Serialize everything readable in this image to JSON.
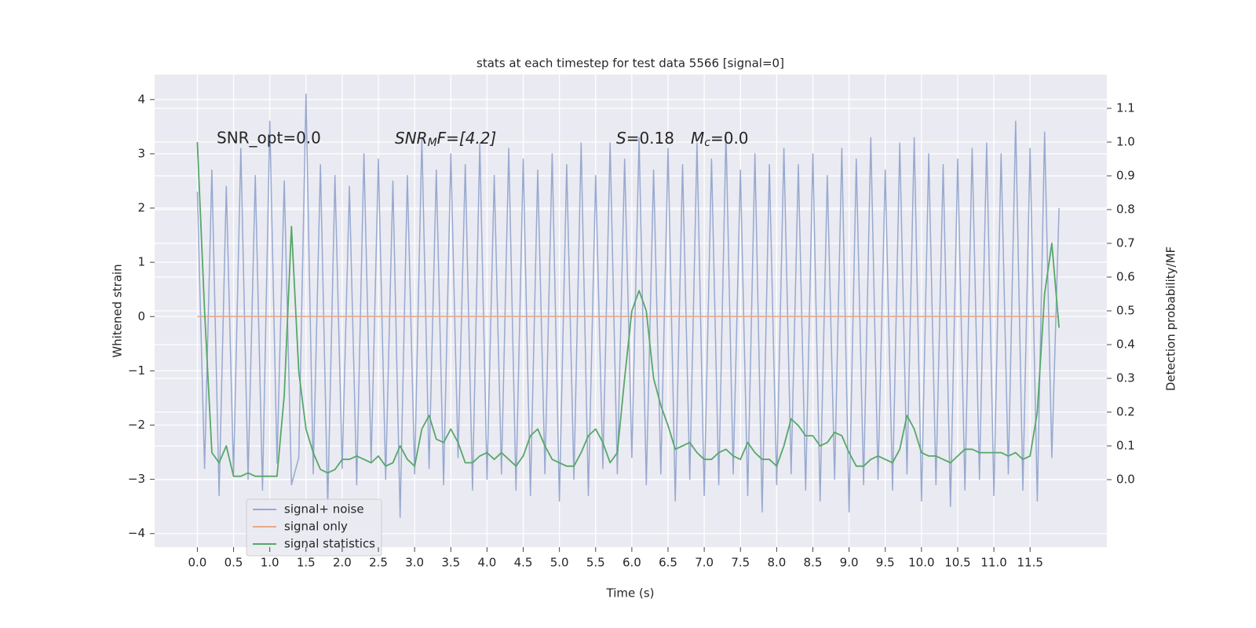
{
  "chart_data": {
    "type": "line",
    "title": "stats at each timestep for test data 5566 [signal=0]",
    "xlabel": "Time (s)",
    "ylabel": "Whitened strain",
    "y2label": "Detection probability/MF",
    "annotations": {
      "snr_opt": "SNR_opt=0.0",
      "snr_mf": {
        "base": "SNR",
        "subscript": "M",
        "rest": "F=[4.2]"
      },
      "s": {
        "symbol": "S",
        "rest": "=0.18"
      },
      "mc": {
        "symbol": "M",
        "subscript": "c",
        "rest": "=0.0"
      }
    },
    "xlim": [
      -0.59,
      12.56
    ],
    "ylim": [
      -4.25,
      4.46
    ],
    "y2lim": [
      -0.2,
      1.2
    ],
    "xticks": [
      {
        "value": 0,
        "label": "0.0"
      },
      0.5,
      {
        "value": 1,
        "label": "1.0"
      },
      1.5,
      {
        "value": 2,
        "label": "2.0"
      },
      2.5,
      {
        "value": 3,
        "label": "3.0"
      },
      3.5,
      {
        "value": 4,
        "label": "4.0"
      },
      4.5,
      {
        "value": 5,
        "label": "5.0"
      },
      5.5,
      {
        "value": 6,
        "label": "6.0"
      },
      6.5,
      {
        "value": 7,
        "label": "7.0"
      },
      7.5,
      {
        "value": 8,
        "label": "8.0"
      },
      8.5,
      {
        "value": 9,
        "label": "9.0"
      },
      9.5,
      {
        "value": 10,
        "label": "10.0"
      },
      10.5,
      {
        "value": 11,
        "label": "11.0"
      },
      11.5
    ],
    "yticks": [
      {
        "value": -4,
        "label": "−4"
      },
      {
        "value": -3,
        "label": "−3"
      },
      {
        "value": -2,
        "label": "−2"
      },
      {
        "value": -1,
        "label": "−1"
      },
      0,
      1,
      2,
      3,
      4
    ],
    "y2ticks": [
      {
        "value": 0,
        "label": "0.0"
      },
      0.1,
      0.2,
      0.3,
      0.4,
      0.5,
      0.6,
      0.7,
      0.8,
      0.9,
      {
        "value": 1,
        "label": "1.0"
      },
      1.1
    ],
    "grid": true,
    "legend": "lower left",
    "x": [
      0.0,
      0.1,
      0.2,
      0.3,
      0.4,
      0.5,
      0.6,
      0.7,
      0.8,
      0.9,
      1.0,
      1.1,
      1.2,
      1.3,
      1.4,
      1.5,
      1.6,
      1.7,
      1.8,
      1.9,
      2.0,
      2.1,
      2.2,
      2.3,
      2.4,
      2.5,
      2.6,
      2.7,
      2.8,
      2.9,
      3.0,
      3.1,
      3.2,
      3.3,
      3.4,
      3.5,
      3.6,
      3.7,
      3.8,
      3.9,
      4.0,
      4.1,
      4.2,
      4.3,
      4.4,
      4.5,
      4.6,
      4.7,
      4.8,
      4.9,
      5.0,
      5.1,
      5.2,
      5.3,
      5.4,
      5.5,
      5.6,
      5.7,
      5.8,
      5.9,
      6.0,
      6.1,
      6.2,
      6.3,
      6.4,
      6.5,
      6.6,
      6.7,
      6.8,
      6.9,
      7.0,
      7.1,
      7.2,
      7.3,
      7.4,
      7.5,
      7.6,
      7.7,
      7.8,
      7.9,
      8.0,
      8.1,
      8.2,
      8.3,
      8.4,
      8.5,
      8.6,
      8.7,
      8.8,
      8.9,
      9.0,
      9.1,
      9.2,
      9.3,
      9.4,
      9.5,
      9.6,
      9.7,
      9.8,
      9.9,
      10.0,
      10.1,
      10.2,
      10.3,
      10.4,
      10.5,
      10.6,
      10.7,
      10.8,
      10.9,
      11.0,
      11.1,
      11.2,
      11.3,
      11.4,
      11.5,
      11.6,
      11.7,
      11.8,
      11.9
    ],
    "series": [
      {
        "name": "signal+ noise",
        "color": "#97a9cf",
        "values": [
          2.3,
          -2.8,
          2.7,
          -3.3,
          2.4,
          -2.9,
          3.1,
          -3.0,
          2.6,
          -3.2,
          3.6,
          -2.7,
          2.5,
          -3.1,
          -2.6,
          4.1,
          -2.9,
          2.8,
          -3.5,
          2.6,
          -2.8,
          2.4,
          -3.1,
          3.0,
          -2.7,
          2.9,
          -3.0,
          2.5,
          -3.7,
          2.6,
          -2.9,
          3.3,
          -2.8,
          2.7,
          -3.1,
          3.0,
          -2.6,
          2.8,
          -3.2,
          3.2,
          -3.0,
          2.6,
          -2.9,
          3.1,
          -3.2,
          2.9,
          -3.3,
          2.7,
          -2.9,
          3.0,
          -3.4,
          2.8,
          -3.0,
          3.2,
          -3.3,
          2.6,
          -2.8,
          3.2,
          -2.9,
          2.9,
          -2.6,
          3.3,
          -3.1,
          2.7,
          -2.9,
          3.1,
          -3.4,
          2.8,
          -3.0,
          3.2,
          -3.3,
          2.9,
          -3.1,
          3.4,
          -2.9,
          2.7,
          -3.3,
          3.0,
          -3.6,
          2.8,
          -3.1,
          3.1,
          -2.9,
          2.8,
          -3.2,
          3.0,
          -3.4,
          2.6,
          -3.0,
          3.1,
          -3.6,
          2.9,
          -3.1,
          3.3,
          -3.0,
          2.7,
          -3.2,
          3.2,
          -2.9,
          3.3,
          -3.4,
          3.0,
          -3.1,
          2.8,
          -3.5,
          2.9,
          -3.2,
          3.1,
          -3.0,
          3.2,
          -3.3,
          3.0,
          -2.9,
          3.6,
          -3.2,
          3.1,
          -3.4,
          3.4,
          -2.6,
          2.0
        ]
      },
      {
        "name": "signal only",
        "color": "#e6a98a",
        "values": [
          0,
          0,
          0,
          0,
          0,
          0,
          0,
          0,
          0,
          0,
          0,
          0,
          0,
          0,
          0,
          0,
          0,
          0,
          0,
          0,
          0,
          0,
          0,
          0,
          0,
          0,
          0,
          0,
          0,
          0,
          0,
          0,
          0,
          0,
          0,
          0,
          0,
          0,
          0,
          0,
          0,
          0,
          0,
          0,
          0,
          0,
          0,
          0,
          0,
          0,
          0,
          0,
          0,
          0,
          0,
          0,
          0,
          0,
          0,
          0,
          0,
          0,
          0,
          0,
          0,
          0,
          0,
          0,
          0,
          0,
          0,
          0,
          0,
          0,
          0,
          0,
          0,
          0,
          0,
          0,
          0,
          0,
          0,
          0,
          0,
          0,
          0,
          0,
          0,
          0,
          0,
          0,
          0,
          0,
          0,
          0,
          0,
          0,
          0,
          0,
          0,
          0,
          0,
          0,
          0,
          0,
          0,
          0,
          0,
          0,
          0,
          0,
          0,
          0,
          0,
          0,
          0,
          0,
          0,
          0
        ]
      },
      {
        "name": "signal statistics",
        "color": "#55a868",
        "axis": "y2",
        "values": [
          1.0,
          0.5,
          0.08,
          0.05,
          0.1,
          0.01,
          0.01,
          0.02,
          0.01,
          0.01,
          0.01,
          0.01,
          0.25,
          0.75,
          0.32,
          0.15,
          0.08,
          0.03,
          0.02,
          0.03,
          0.06,
          0.06,
          0.07,
          0.06,
          0.05,
          0.07,
          0.04,
          0.05,
          0.1,
          0.06,
          0.04,
          0.15,
          0.19,
          0.12,
          0.11,
          0.15,
          0.11,
          0.05,
          0.05,
          0.07,
          0.08,
          0.06,
          0.08,
          0.06,
          0.04,
          0.07,
          0.13,
          0.15,
          0.1,
          0.06,
          0.05,
          0.04,
          0.04,
          0.08,
          0.13,
          0.15,
          0.11,
          0.05,
          0.08,
          0.3,
          0.5,
          0.56,
          0.5,
          0.3,
          0.22,
          0.16,
          0.09,
          0.1,
          0.11,
          0.08,
          0.06,
          0.06,
          0.08,
          0.09,
          0.07,
          0.06,
          0.11,
          0.08,
          0.06,
          0.06,
          0.04,
          0.1,
          0.18,
          0.16,
          0.13,
          0.13,
          0.1,
          0.11,
          0.14,
          0.13,
          0.08,
          0.04,
          0.04,
          0.06,
          0.07,
          0.06,
          0.05,
          0.09,
          0.19,
          0.15,
          0.08,
          0.07,
          0.07,
          0.06,
          0.05,
          0.07,
          0.09,
          0.09,
          0.08,
          0.08,
          0.08,
          0.08,
          0.07,
          0.08,
          0.06,
          0.07,
          0.2,
          0.55,
          0.7,
          0.45
        ]
      }
    ]
  }
}
